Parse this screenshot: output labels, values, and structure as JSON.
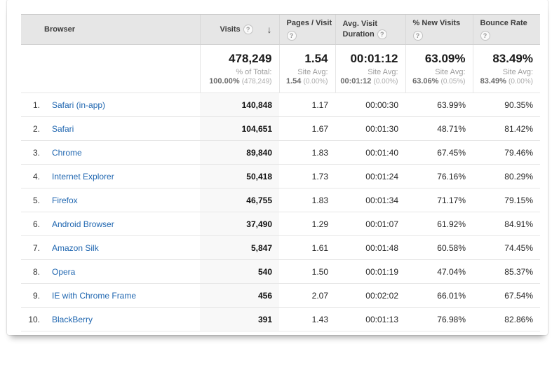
{
  "icons": {
    "help": "?",
    "sort_desc": "↓"
  },
  "colors": {
    "link_blue": "#1f66b0",
    "header_bg": "#e6e6e6",
    "sorted_column_bg": "#f8f8f8"
  },
  "chart_data": {
    "type": "table",
    "title": "Browser metrics table",
    "sorted_column": "Visits",
    "sort_direction": "descending",
    "columns": [
      "Browser",
      "Visits",
      "Pages / Visit",
      "Avg. Visit Duration",
      "% New Visits",
      "Bounce Rate"
    ],
    "summary": [
      {
        "value": "478,249",
        "sub_label": "% of Total:",
        "sub_value": "100.00%",
        "sub_delta": "(478,249)"
      },
      {
        "value": "1.54",
        "sub_label": "Site Avg:",
        "sub_value": "1.54",
        "sub_delta": "(0.00%)"
      },
      {
        "value": "00:01:12",
        "sub_label": "Site Avg:",
        "sub_value": "00:01:12",
        "sub_delta": "(0.00%)"
      },
      {
        "value": "63.09%",
        "sub_label": "Site Avg:",
        "sub_value": "63.06%",
        "sub_delta": "(0.05%)"
      },
      {
        "value": "83.49%",
        "sub_label": "Site Avg:",
        "sub_value": "83.49%",
        "sub_delta": "(0.00%)"
      }
    ],
    "rows": [
      {
        "rank": "1.",
        "browser": "Safari (in-app)",
        "visits": "140,848",
        "pages_per_visit": "1.17",
        "avg_visit_duration": "00:00:30",
        "new_visits": "63.99%",
        "bounce_rate": "90.35%"
      },
      {
        "rank": "2.",
        "browser": "Safari",
        "visits": "104,651",
        "pages_per_visit": "1.67",
        "avg_visit_duration": "00:01:30",
        "new_visits": "48.71%",
        "bounce_rate": "81.42%"
      },
      {
        "rank": "3.",
        "browser": "Chrome",
        "visits": "89,840",
        "pages_per_visit": "1.83",
        "avg_visit_duration": "00:01:40",
        "new_visits": "67.45%",
        "bounce_rate": "79.46%"
      },
      {
        "rank": "4.",
        "browser": "Internet Explorer",
        "visits": "50,418",
        "pages_per_visit": "1.73",
        "avg_visit_duration": "00:01:24",
        "new_visits": "76.16%",
        "bounce_rate": "80.29%"
      },
      {
        "rank": "5.",
        "browser": "Firefox",
        "visits": "46,755",
        "pages_per_visit": "1.83",
        "avg_visit_duration": "00:01:34",
        "new_visits": "71.17%",
        "bounce_rate": "79.15%"
      },
      {
        "rank": "6.",
        "browser": "Android Browser",
        "visits": "37,490",
        "pages_per_visit": "1.29",
        "avg_visit_duration": "00:01:07",
        "new_visits": "61.92%",
        "bounce_rate": "84.91%"
      },
      {
        "rank": "7.",
        "browser": "Amazon Silk",
        "visits": "5,847",
        "pages_per_visit": "1.61",
        "avg_visit_duration": "00:01:48",
        "new_visits": "60.58%",
        "bounce_rate": "74.45%"
      },
      {
        "rank": "8.",
        "browser": "Opera",
        "visits": "540",
        "pages_per_visit": "1.50",
        "avg_visit_duration": "00:01:19",
        "new_visits": "47.04%",
        "bounce_rate": "85.37%"
      },
      {
        "rank": "9.",
        "browser": "IE with Chrome Frame",
        "visits": "456",
        "pages_per_visit": "2.07",
        "avg_visit_duration": "00:02:02",
        "new_visits": "66.01%",
        "bounce_rate": "67.54%"
      },
      {
        "rank": "10.",
        "browser": "BlackBerry",
        "visits": "391",
        "pages_per_visit": "1.43",
        "avg_visit_duration": "00:01:13",
        "new_visits": "76.98%",
        "bounce_rate": "82.86%"
      }
    ]
  }
}
